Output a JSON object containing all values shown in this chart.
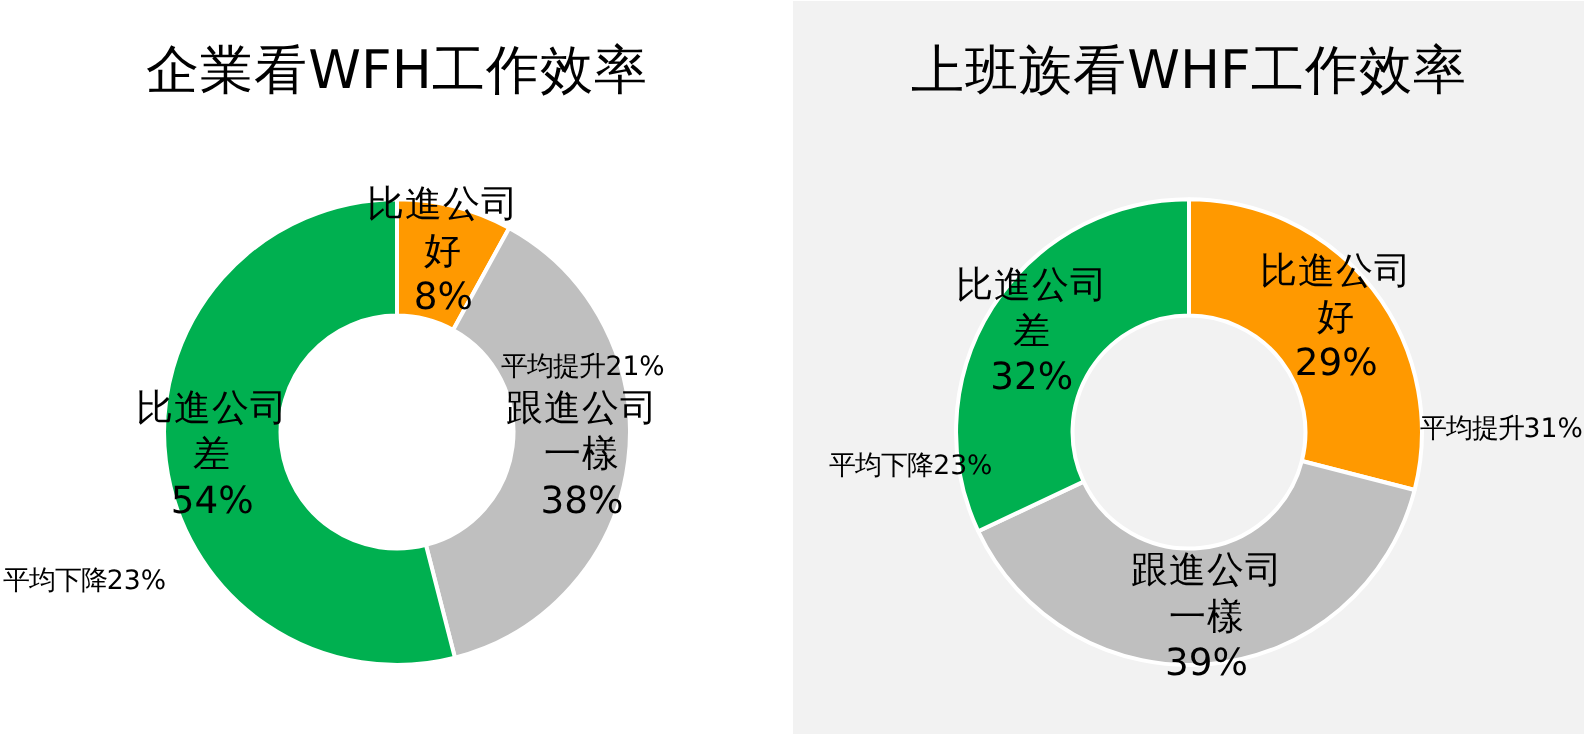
{
  "chart_data": [
    {
      "type": "donut",
      "title": "企業看WFH工作效率",
      "categories": [
        "比進公司好",
        "跟進公司一樣",
        "比進公司差"
      ],
      "values": [
        8,
        38,
        54
      ],
      "value_labels": [
        "8%",
        "38%",
        "54%"
      ],
      "colors": [
        "#ff9900",
        "#bfbfbf",
        "#00b050"
      ],
      "annotations": [
        "平均提升21%",
        "平均下降23%"
      ]
    },
    {
      "type": "donut",
      "title": "上班族看WHF工作效率",
      "categories": [
        "比進公司好",
        "跟進公司一樣",
        "比進公司差"
      ],
      "values": [
        29,
        39,
        32
      ],
      "value_labels": [
        "29%",
        "39%",
        "32%"
      ],
      "colors": [
        "#ff9900",
        "#bfbfbf",
        "#00b050"
      ],
      "annotations": [
        "平均提升31%",
        "平均下降23%"
      ]
    }
  ]
}
